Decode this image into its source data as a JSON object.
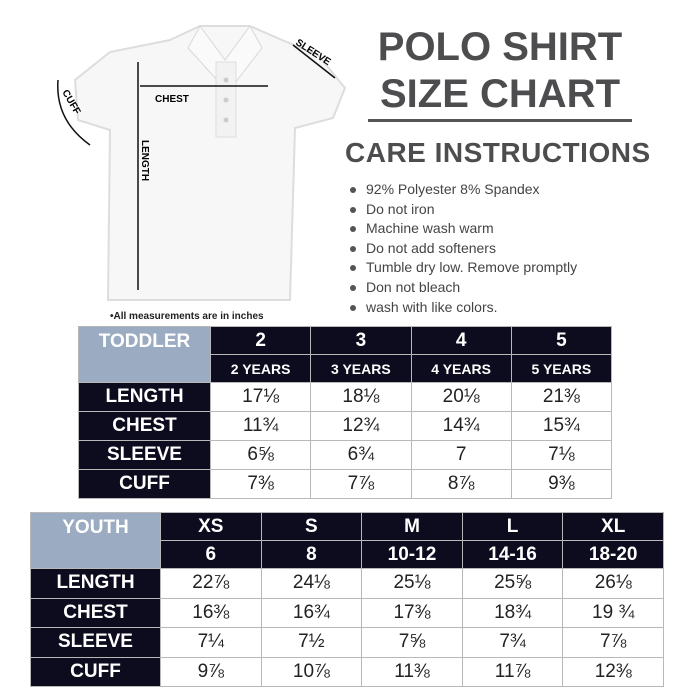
{
  "title": {
    "line1": "POLO SHIRT",
    "line2": "SIZE CHART"
  },
  "care": {
    "heading": "CARE INSTRUCTIONS",
    "items": [
      "92% Polyester 8% Spandex",
      "Do not iron",
      "Machine wash warm",
      "Do not add softeners",
      "Tumble dry low. Remove promptly",
      "Don not bleach",
      "wash with like colors."
    ]
  },
  "diagram": {
    "chest": "CHEST",
    "length": "LENGTH",
    "sleeve": "SLEEVE",
    "cuff": "CUFF",
    "note": "•All measurements are in inches"
  },
  "toddler": {
    "label": "TODDLER",
    "sizes": [
      "2",
      "3",
      "4",
      "5"
    ],
    "ages": [
      "2 YEARS",
      "3 YEARS",
      "4 YEARS",
      "5 YEARS"
    ],
    "rows": [
      {
        "name": "LENGTH",
        "values": [
          "17⅛",
          "18⅛",
          "20⅛",
          "21⅜"
        ]
      },
      {
        "name": "CHEST",
        "values": [
          "11¾",
          "12¾",
          "14¾",
          "15¾"
        ]
      },
      {
        "name": "SLEEVE",
        "values": [
          "6⅝",
          "6¾",
          "7",
          "7⅛"
        ]
      },
      {
        "name": "CUFF",
        "values": [
          "7⅜",
          "7⅞",
          "8⅞",
          "9⅜"
        ]
      }
    ]
  },
  "youth": {
    "label": "YOUTH",
    "sizes": [
      "XS",
      "S",
      "M",
      "L",
      "XL"
    ],
    "ages": [
      "6",
      "8",
      "10-12",
      "14-16",
      "18-20"
    ],
    "rows": [
      {
        "name": "LENGTH",
        "values": [
          "22⅞",
          "24⅛",
          "25⅛",
          "25⅝",
          "26⅛"
        ]
      },
      {
        "name": "CHEST",
        "values": [
          "16⅜",
          "16¾",
          "17⅜",
          "18¾",
          "19 ¾"
        ]
      },
      {
        "name": "SLEEVE",
        "values": [
          "7¼",
          "7½",
          "7⅝",
          "7¾",
          "7⅞"
        ]
      },
      {
        "name": "CUFF",
        "values": [
          "9⅞",
          "10⅞",
          "11⅜",
          "11⅞",
          "12⅜"
        ]
      }
    ]
  },
  "colors": {
    "dark": "#0d0b1e",
    "header_blue": "#9aabc2",
    "title_gray": "#4d4d4f"
  }
}
